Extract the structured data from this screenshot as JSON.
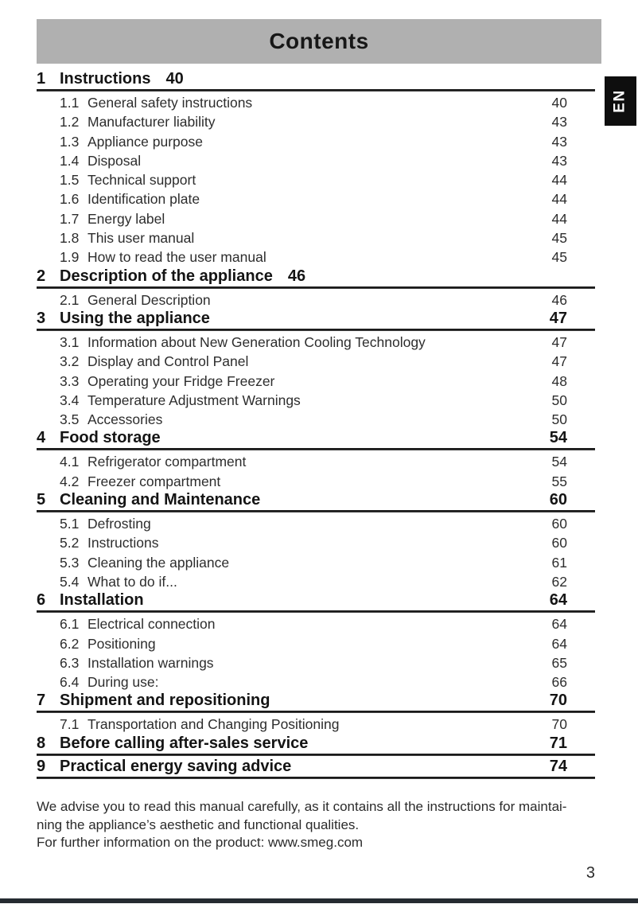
{
  "page": {
    "title": "Contents",
    "language_tab": "EN",
    "page_number": "3"
  },
  "toc": {
    "sections": [
      {
        "num": "1",
        "title": "Instructions",
        "page": "40",
        "page_style": "inline",
        "items": [
          {
            "num": "1.1",
            "title": "General safety instructions",
            "page": "40"
          },
          {
            "num": "1.2",
            "title": "Manufacturer liability",
            "page": "43"
          },
          {
            "num": "1.3",
            "title": "Appliance purpose",
            "page": "43"
          },
          {
            "num": "1.4",
            "title": "Disposal",
            "page": "43"
          },
          {
            "num": "1.5",
            "title": "Technical support",
            "page": "44"
          },
          {
            "num": "1.6",
            "title": "Identification plate",
            "page": "44"
          },
          {
            "num": "1.7",
            "title": "Energy label",
            "page": "44"
          },
          {
            "num": "1.8",
            "title": "This user manual",
            "page": "45"
          },
          {
            "num": "1.9",
            "title": "How to read the user manual",
            "page": "45"
          }
        ]
      },
      {
        "num": "2",
        "title": "Description of the appliance",
        "page": "46",
        "page_style": "inline",
        "items": [
          {
            "num": "2.1",
            "title": "General Description",
            "page": "46"
          }
        ]
      },
      {
        "num": "3",
        "title": "Using the appliance",
        "page": "47",
        "page_style": "right",
        "items": [
          {
            "num": "3.1",
            "title": "Information about New Generation Cooling Technology",
            "page": "47"
          },
          {
            "num": "3.2",
            "title": "Display and Control Panel",
            "page": "47"
          },
          {
            "num": "3.3",
            "title": "Operating your Fridge Freezer",
            "page": "48"
          },
          {
            "num": "3.4",
            "title": "Temperature Adjustment Warnings",
            "page": "50"
          },
          {
            "num": "3.5",
            "title": "Accessories",
            "page": "50"
          }
        ]
      },
      {
        "num": "4",
        "title": "Food storage",
        "page": "54",
        "page_style": "right",
        "items": [
          {
            "num": "4.1",
            "title": "Refrigerator compartment",
            "page": "54"
          },
          {
            "num": "4.2",
            "title": "Freezer compartment",
            "page": "55"
          }
        ]
      },
      {
        "num": "5",
        "title": "Cleaning and Maintenance",
        "page": "60",
        "page_style": "right",
        "items": [
          {
            "num": "5.1",
            "title": "Defrosting",
            "page": "60"
          },
          {
            "num": "5.2",
            "title": "Instructions",
            "page": "60"
          },
          {
            "num": "5.3",
            "title": "Cleaning the appliance",
            "page": "61"
          },
          {
            "num": "5.4",
            "title": "What to do if...",
            "page": "62"
          }
        ]
      },
      {
        "num": "6",
        "title": "Installation",
        "page": "64",
        "page_style": "right",
        "items": [
          {
            "num": "6.1",
            "title": "Electrical connection",
            "page": "64"
          },
          {
            "num": "6.2",
            "title": "Positioning",
            "page": "64"
          },
          {
            "num": "6.3",
            "title": "Installation warnings",
            "page": "65"
          },
          {
            "num": "6.4",
            "title": "During use:",
            "page": "66"
          }
        ]
      },
      {
        "num": "7",
        "title": "Shipment and repositioning",
        "page": "70",
        "page_style": "right",
        "items": [
          {
            "num": "7.1",
            "title": "Transportation and Changing Positioning",
            "page": "70"
          }
        ]
      },
      {
        "num": "8",
        "title": "Before calling after-sales service",
        "page": "71",
        "page_style": "right",
        "items": []
      },
      {
        "num": "9",
        "title": "Practical energy saving advice",
        "page": "74",
        "page_style": "right",
        "items": []
      }
    ]
  },
  "footer": {
    "lines": [
      "We advise you to read this manual carefully, as it contains all the instructions for maintai-",
      "ning the appliance’s aesthetic and functional qualities.",
      "For further information on the product: www.smeg.com"
    ]
  },
  "colors": {
    "header_bar": "#b0b0b0",
    "text": "#1f1f1f",
    "bottom_bar": "#252b31",
    "tab_bg": "#0e0e0e",
    "tab_text": "#ffffff"
  }
}
